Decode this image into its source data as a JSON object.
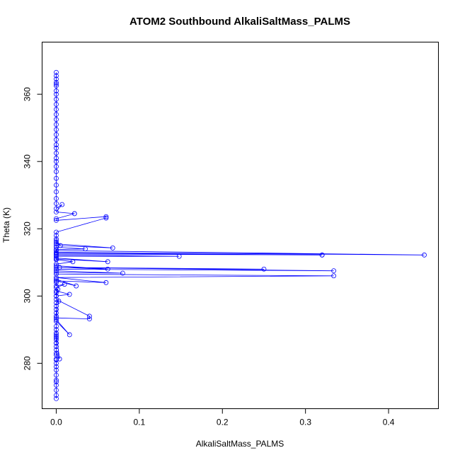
{
  "chart_data": {
    "type": "scatter",
    "title": "ATOM2 Southbound AlkaliSaltMass_PALMS",
    "xlabel": "AlkaliSaltMass_PALMS",
    "ylabel": "Theta (K)",
    "xlim": [
      -0.017,
      0.46
    ],
    "ylim": [
      266.5,
      375.5
    ],
    "x_ticks": [
      0.0,
      0.1,
      0.2,
      0.3,
      0.4
    ],
    "x_tick_labels": [
      "0.0",
      "0.1",
      "0.2",
      "0.3",
      "0.4"
    ],
    "y_ticks": [
      280,
      300,
      320,
      340,
      360
    ],
    "y_tick_labels": [
      "280",
      "300",
      "320",
      "340",
      "360"
    ],
    "grid": false,
    "color": "#0000ff",
    "marker": "open-circle",
    "connected": true,
    "series": [
      {
        "x": [
          0.0,
          0.0,
          0.0,
          0.0,
          0.0,
          0.0,
          0.0,
          0.0,
          0.0,
          0.0,
          0.0,
          0.0,
          0.0,
          0.0,
          0.0,
          0.0,
          0.0,
          0.0,
          0.0,
          0.0,
          0.004,
          0.0,
          0.0,
          0.0,
          0.0,
          0.0,
          0.0,
          0.016,
          0.0,
          0.0,
          0.0,
          0.0,
          0.0,
          0.0,
          0.003,
          0.0,
          0.04,
          0.04,
          0.0,
          0.0,
          0.0,
          0.002,
          0.0,
          0.016,
          0.0,
          0.0,
          0.01,
          0.0,
          0.0,
          0.0,
          0.0,
          0.024,
          0.0,
          0.06,
          0.0,
          0.334,
          0.0,
          0.0,
          0.08,
          0.0,
          0.0,
          0.334,
          0.0,
          0.25,
          0.004,
          0.062,
          0.0,
          0.0,
          0.02,
          0.0,
          0.0,
          0.062,
          0.0,
          0.0,
          0.148,
          0.0,
          0.0,
          0.32,
          0.32,
          0.0,
          0.0,
          0.443,
          0.0,
          0.0,
          0.035,
          0.0,
          0.0,
          0.068,
          0.0,
          0.0,
          0.005,
          0.0,
          0.0,
          0.0,
          0.0,
          0.06,
          0.06,
          0.0,
          0.0,
          0.022,
          0.022,
          0.0,
          0.007,
          0.0,
          0.0,
          0.0,
          0.0,
          0.0,
          0.0,
          0.0,
          0.0,
          0.0,
          0.0,
          0.0,
          0.0,
          0.0,
          0.0,
          0.0,
          0.0,
          0.0,
          0.0,
          0.0,
          0.0,
          0.0,
          0.0,
          0.0,
          0.0,
          0.0,
          0.0,
          0.0,
          0.0,
          0.0,
          0.0
        ],
        "y": [
          269.5,
          270.5,
          272.0,
          273.5,
          274.5,
          275.0,
          276.5,
          278.0,
          279.0,
          280.0,
          281.0,
          281.3,
          282.5,
          284.0,
          285.0,
          286.0,
          287.0,
          287.5,
          288.0,
          288.5,
          281.3,
          283.0,
          286.0,
          289.0,
          290.0,
          291.0,
          292.5,
          288.5,
          293.0,
          294.0,
          295.0,
          296.0,
          297.0,
          298.0,
          298.5,
          293.5,
          293.2,
          294.0,
          299.0,
          300.0,
          301.0,
          302.0,
          300.0,
          300.5,
          301.5,
          302.5,
          303.5,
          303.0,
          304.0,
          304.5,
          305.0,
          303.0,
          304.5,
          304.0,
          305.5,
          306.0,
          306.5,
          307.0,
          306.8,
          307.5,
          308.0,
          307.5,
          308.5,
          308.0,
          308.5,
          308.0,
          309.0,
          309.5,
          310.2,
          310.8,
          311.0,
          310.2,
          311.3,
          311.8,
          311.8,
          312.2,
          312.5,
          312.2,
          312.2,
          312.8,
          313.5,
          312.2,
          313.0,
          313.8,
          314.0,
          314.5,
          315.0,
          314.3,
          315.5,
          316.0,
          315.0,
          316.5,
          317.0,
          318.0,
          319.0,
          323.2,
          323.6,
          322.5,
          323.0,
          324.5,
          324.5,
          325.0,
          327.2,
          326.0,
          327.5,
          329.0,
          331.0,
          333.0,
          335.0,
          337.0,
          338.5,
          340.0,
          341.0,
          342.5,
          344.0,
          345.0,
          346.5,
          348.0,
          349.5,
          351.0,
          352.5,
          354.0,
          355.5,
          357.0,
          358.5,
          360.0,
          361.0,
          362.5,
          363.5,
          364.5,
          365.5,
          366.5,
          363.0
        ]
      }
    ]
  }
}
